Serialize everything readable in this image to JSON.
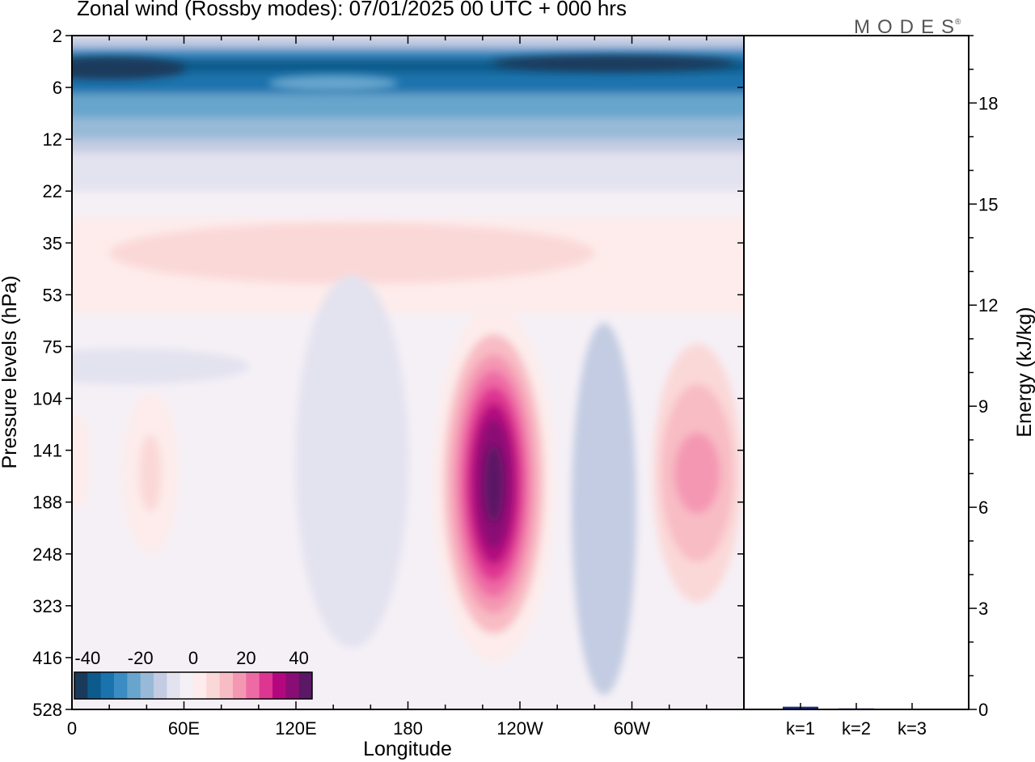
{
  "title": "Zonal wind (Rossby modes):  07/01/2025  00 UTC  + 000 hrs",
  "logo": "MODES",
  "logo_mark": "®",
  "colors": {
    "neg": [
      "#1a3a5c",
      "#0d5b8c",
      "#1a73ad",
      "#3a8cc2",
      "#68a5cc",
      "#98bad8",
      "#c3cce2",
      "#e3e2ef"
    ],
    "near_zero": [
      "#f5f0f6",
      "#fdeceb"
    ],
    "pos": [
      "#fbd8d8",
      "#f8bcc4",
      "#f497b3",
      "#ee6aa5",
      "#de3591",
      "#b4077f",
      "#8a0d75",
      "#5a1865"
    ]
  },
  "chart_data": [
    {
      "type": "heatmap",
      "title": "Zonal wind (Rossby modes):  07/01/2025  00 UTC  + 000 hrs",
      "xlabel": "Longitude",
      "ylabel": "Pressure levels (hPa)",
      "x_ticks": [
        "0",
        "60E",
        "120E",
        "180",
        "120W",
        "60W"
      ],
      "x_tick_degrees": [
        0,
        60,
        120,
        180,
        240,
        300
      ],
      "x_range_degrees": [
        0,
        360
      ],
      "y_ticks": [
        2,
        6,
        12,
        22,
        35,
        53,
        75,
        104,
        141,
        188,
        248,
        323,
        416,
        528
      ],
      "y_range": [
        2,
        528
      ],
      "y_direction": "down",
      "colorbar": {
        "tick_labels": [
          "-40",
          "-20",
          "0",
          "20",
          "40"
        ],
        "tick_values": [
          -40,
          -20,
          0,
          20,
          40
        ],
        "range": [
          -45,
          45
        ],
        "step": 5,
        "placement": "bottom-left"
      },
      "features": [
        {
          "lon": 20,
          "level": 4,
          "value": -35
        },
        {
          "lon": 280,
          "level": 3.5,
          "value": -40
        },
        {
          "lon": 145,
          "level": 4,
          "value": -30
        },
        {
          "lon": 150,
          "level": 38,
          "value": 5
        },
        {
          "lon": 30,
          "level": 85,
          "value": -3
        },
        {
          "lon": 150,
          "level": 150,
          "value": -3
        },
        {
          "lon": 226,
          "level": 170,
          "value": 40
        },
        {
          "lon": 285,
          "level": 195,
          "value": -6
        },
        {
          "lon": 335,
          "level": 160,
          "value": 18
        },
        {
          "lon": 42,
          "level": 160,
          "value": 6
        },
        {
          "lon": 2,
          "level": 150,
          "value": 3
        }
      ]
    },
    {
      "type": "bar",
      "categories": [
        "k=1",
        "k=2",
        "k=3"
      ],
      "values": [
        0.08,
        0.03,
        0.02
      ],
      "ylabel": "Energy (kJ/kg)",
      "y_ticks": [
        0,
        3,
        6,
        9,
        12,
        15,
        18
      ],
      "ylim": [
        0,
        20
      ],
      "bar_color": "#1a2a8c"
    }
  ]
}
